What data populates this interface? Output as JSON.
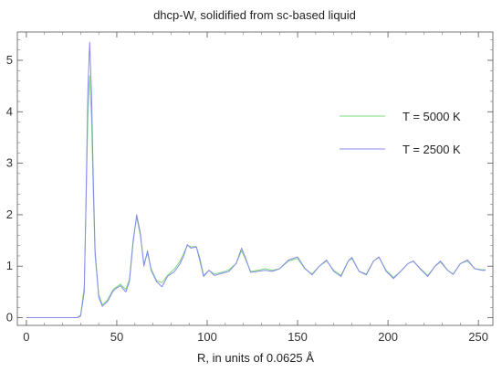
{
  "chart_data": {
    "type": "line",
    "title": "dhcp-W, solidified from sc-based liquid",
    "xlabel": "R, in units of 0.0625 Å",
    "ylabel": "",
    "xlim": [
      -5,
      258
    ],
    "ylim": [
      -0.15,
      5.55
    ],
    "x_ticks": [
      0,
      50,
      100,
      150,
      200,
      250
    ],
    "y_ticks": [
      0,
      1,
      2,
      3,
      4,
      5
    ],
    "grid": false,
    "legend_placement": "right",
    "series": [
      {
        "name": "T = 5000 K",
        "color": "#7dde7d",
        "points": [
          [
            0,
            0
          ],
          [
            28,
            0
          ],
          [
            30,
            0.05
          ],
          [
            32,
            0.6
          ],
          [
            33,
            2.2
          ],
          [
            34,
            3.9
          ],
          [
            35,
            4.7
          ],
          [
            36,
            3.9
          ],
          [
            37,
            2.4
          ],
          [
            38,
            1.2
          ],
          [
            40,
            0.45
          ],
          [
            42,
            0.25
          ],
          [
            45,
            0.35
          ],
          [
            48,
            0.55
          ],
          [
            50,
            0.6
          ],
          [
            52,
            0.65
          ],
          [
            55,
            0.55
          ],
          [
            57,
            0.75
          ],
          [
            59,
            1.5
          ],
          [
            61,
            1.95
          ],
          [
            63,
            1.6
          ],
          [
            65,
            1.05
          ],
          [
            67,
            1.25
          ],
          [
            69,
            0.95
          ],
          [
            72,
            0.72
          ],
          [
            75,
            0.68
          ],
          [
            78,
            0.82
          ],
          [
            82,
            0.95
          ],
          [
            85,
            1.1
          ],
          [
            87,
            1.25
          ],
          [
            89,
            1.4
          ],
          [
            91,
            1.38
          ],
          [
            94,
            1.38
          ],
          [
            96,
            1.15
          ],
          [
            98,
            0.82
          ],
          [
            101,
            0.92
          ],
          [
            104,
            0.85
          ],
          [
            108,
            0.88
          ],
          [
            112,
            0.93
          ],
          [
            116,
            1.05
          ],
          [
            119,
            1.3
          ],
          [
            121,
            1.15
          ],
          [
            124,
            0.9
          ],
          [
            128,
            0.92
          ],
          [
            132,
            0.95
          ],
          [
            136,
            0.92
          ],
          [
            140,
            0.95
          ],
          [
            145,
            1.1
          ],
          [
            150,
            1.15
          ],
          [
            154,
            0.95
          ],
          [
            158,
            0.85
          ],
          [
            162,
            1.0
          ],
          [
            166,
            1.1
          ],
          [
            170,
            0.92
          ],
          [
            174,
            0.82
          ],
          [
            178,
            1.1
          ],
          [
            180,
            1.15
          ],
          [
            184,
            0.9
          ],
          [
            188,
            0.85
          ],
          [
            192,
            1.1
          ],
          [
            195,
            1.17
          ],
          [
            199,
            0.92
          ],
          [
            203,
            0.78
          ],
          [
            207,
            0.9
          ],
          [
            211,
            1.05
          ],
          [
            214,
            1.1
          ],
          [
            218,
            0.95
          ],
          [
            222,
            0.82
          ],
          [
            226,
            1.0
          ],
          [
            229,
            1.08
          ],
          [
            233,
            0.92
          ],
          [
            236,
            0.85
          ],
          [
            240,
            1.05
          ],
          [
            244,
            1.1
          ],
          [
            248,
            0.95
          ],
          [
            252,
            0.93
          ],
          [
            254,
            0.93
          ]
        ]
      },
      {
        "name": "T = 2500 K",
        "color": "#8888ee",
        "points": [
          [
            0,
            0
          ],
          [
            28,
            0
          ],
          [
            30,
            0.03
          ],
          [
            32,
            0.5
          ],
          [
            33,
            2.3
          ],
          [
            34,
            4.4
          ],
          [
            35,
            5.35
          ],
          [
            36,
            4.4
          ],
          [
            37,
            2.7
          ],
          [
            38,
            1.3
          ],
          [
            40,
            0.4
          ],
          [
            42,
            0.22
          ],
          [
            45,
            0.32
          ],
          [
            48,
            0.52
          ],
          [
            50,
            0.58
          ],
          [
            52,
            0.62
          ],
          [
            55,
            0.5
          ],
          [
            57,
            0.7
          ],
          [
            59,
            1.45
          ],
          [
            61,
            2.0
          ],
          [
            63,
            1.65
          ],
          [
            65,
            1.0
          ],
          [
            67,
            1.3
          ],
          [
            69,
            0.92
          ],
          [
            72,
            0.7
          ],
          [
            75,
            0.6
          ],
          [
            78,
            0.8
          ],
          [
            82,
            0.9
          ],
          [
            85,
            1.05
          ],
          [
            87,
            1.2
          ],
          [
            89,
            1.42
          ],
          [
            91,
            1.35
          ],
          [
            94,
            1.38
          ],
          [
            96,
            1.1
          ],
          [
            98,
            0.8
          ],
          [
            101,
            0.92
          ],
          [
            104,
            0.82
          ],
          [
            108,
            0.86
          ],
          [
            112,
            0.9
          ],
          [
            116,
            1.05
          ],
          [
            119,
            1.35
          ],
          [
            121,
            1.18
          ],
          [
            124,
            0.88
          ],
          [
            128,
            0.9
          ],
          [
            132,
            0.92
          ],
          [
            136,
            0.9
          ],
          [
            140,
            0.95
          ],
          [
            145,
            1.12
          ],
          [
            150,
            1.18
          ],
          [
            154,
            0.96
          ],
          [
            158,
            0.83
          ],
          [
            162,
            1.0
          ],
          [
            166,
            1.12
          ],
          [
            170,
            0.9
          ],
          [
            174,
            0.8
          ],
          [
            178,
            1.1
          ],
          [
            180,
            1.17
          ],
          [
            184,
            0.9
          ],
          [
            188,
            0.83
          ],
          [
            192,
            1.1
          ],
          [
            195,
            1.18
          ],
          [
            199,
            0.9
          ],
          [
            203,
            0.76
          ],
          [
            207,
            0.9
          ],
          [
            211,
            1.05
          ],
          [
            214,
            1.1
          ],
          [
            218,
            0.94
          ],
          [
            222,
            0.8
          ],
          [
            226,
            1.0
          ],
          [
            229,
            1.1
          ],
          [
            233,
            0.92
          ],
          [
            236,
            0.84
          ],
          [
            240,
            1.05
          ],
          [
            244,
            1.12
          ],
          [
            248,
            0.95
          ],
          [
            252,
            0.92
          ],
          [
            254,
            0.92
          ]
        ]
      }
    ]
  }
}
